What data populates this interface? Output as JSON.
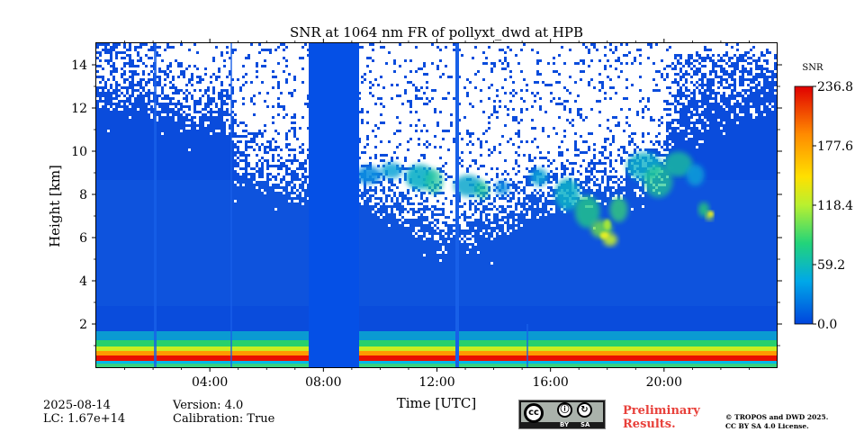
{
  "chart_data": {
    "type": "heatmap",
    "title": "SNR at 1064 nm FR of pollyxt_dwd at HPB",
    "xlabel": "Time [UTC]",
    "ylabel": "Height [km]",
    "xlim_hours": [
      0,
      24
    ],
    "ylim_km": [
      0,
      15
    ],
    "x_ticks": [
      {
        "hour": 4,
        "label": "04:00"
      },
      {
        "hour": 8,
        "label": "08:00"
      },
      {
        "hour": 12,
        "label": "12:00"
      },
      {
        "hour": 16,
        "label": "16:00"
      },
      {
        "hour": 20,
        "label": "20:00"
      }
    ],
    "y_ticks": [
      {
        "km": 2,
        "label": "2"
      },
      {
        "km": 4,
        "label": "4"
      },
      {
        "km": 6,
        "label": "6"
      },
      {
        "km": 8,
        "label": "8"
      },
      {
        "km": 10,
        "label": "10"
      },
      {
        "km": 12,
        "label": "12"
      },
      {
        "km": 14,
        "label": "14"
      }
    ],
    "colorbar": {
      "label": "SNR",
      "range": [
        0.0,
        236.8
      ],
      "ticks": [
        {
          "value": 0.0,
          "label": "0.0"
        },
        {
          "value": 59.2,
          "label": "59.2"
        },
        {
          "value": 118.4,
          "label": "118.4"
        },
        {
          "value": 177.6,
          "label": "177.6"
        },
        {
          "value": 236.8,
          "label": "236.8"
        }
      ],
      "colormap": [
        "#0044dd",
        "#00a8e8",
        "#22d47a",
        "#b8f030",
        "#ffe000",
        "#ff8a00",
        "#e00000"
      ]
    },
    "features": {
      "high_snr_boundary_layer_km": [
        0,
        0.6
      ],
      "low_data_gap_hours": [
        7.5,
        9.2
      ],
      "cirrus_cloud_layer_hours": [
        9.2,
        22.2
      ],
      "cirrus_height_km": [
        5.5,
        10.5
      ]
    }
  },
  "footer": {
    "date": "2025-08-14",
    "lc": "LC: 1.67e+14",
    "version": "Version: 4.0",
    "calibration": "Calibration: True",
    "preliminary_line1": "Preliminary",
    "preliminary_line2": "Results.",
    "license_line1": "© TROPOS and DWD 2025.",
    "license_line2": "CC BY SA 4.0 License.",
    "cc_badge": {
      "cc": "cc",
      "by": "BY",
      "sa": "SA"
    }
  },
  "colors": {
    "background": "#0044dd",
    "text": "#000000",
    "preliminary": "#e8403a"
  }
}
